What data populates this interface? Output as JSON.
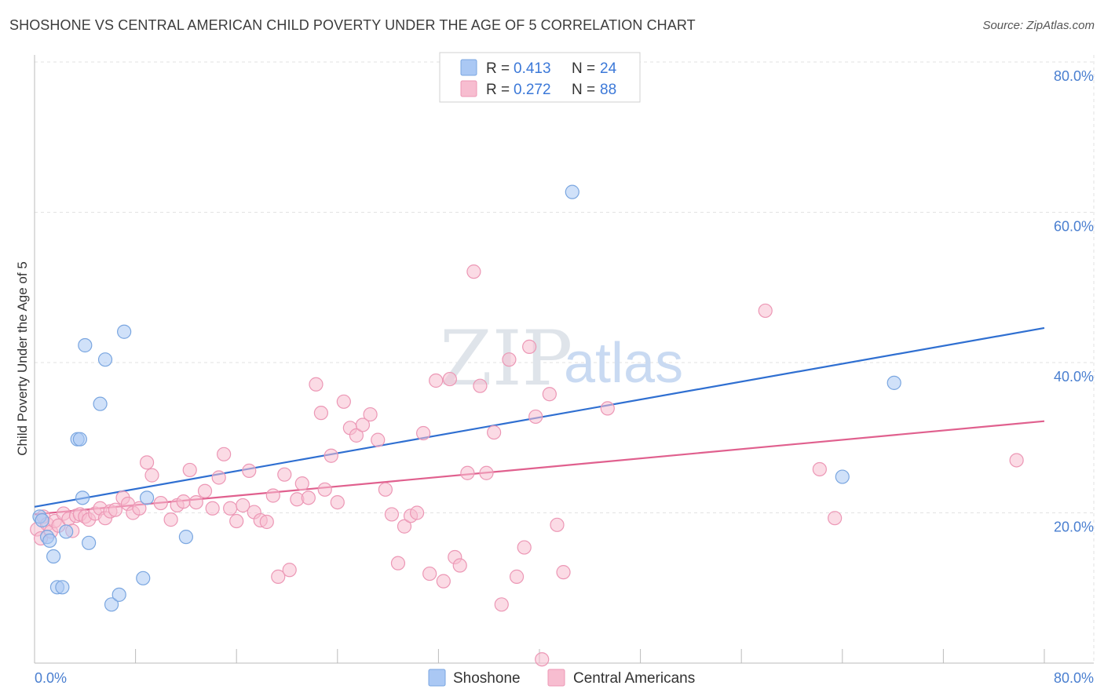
{
  "header": {
    "title": "SHOSHONE VS CENTRAL AMERICAN CHILD POVERTY UNDER THE AGE OF 5 CORRELATION CHART",
    "source": "Source: ZipAtlas.com"
  },
  "watermark": {
    "zip": "ZIP",
    "atlas": "atlas"
  },
  "legend": {
    "items": [
      {
        "r_label": "R =",
        "r_value": "0.413",
        "n_label": "N =",
        "n_value": "24"
      },
      {
        "r_label": "R =",
        "r_value": "0.272",
        "n_label": "N =",
        "n_value": "88"
      }
    ]
  },
  "chart_data": {
    "type": "scatter",
    "title": "SHOSHONE VS CENTRAL AMERICAN CHILD POVERTY UNDER THE AGE OF 5 CORRELATION CHART",
    "xlabel": "",
    "ylabel": "Child Poverty Under the Age of 5",
    "xlim": [
      0,
      80
    ],
    "ylim": [
      0,
      82
    ],
    "x_tick_labels": [
      "0.0%",
      "80.0%"
    ],
    "y_ticks": [
      20,
      40,
      60,
      80
    ],
    "y_tick_labels": [
      "20.0%",
      "40.0%",
      "60.0%",
      "80.0%"
    ],
    "grid": true,
    "legend_position": "top-center",
    "colors": {
      "shoshone_fill": "#aac8f4",
      "shoshone_stroke": "#7aa6e0",
      "shoshone_line": "#2f6fd1",
      "central_fill": "#f7bdd0",
      "central_stroke": "#ec97b5",
      "central_line": "#e0608e",
      "axis_text": "#4a7fd0"
    },
    "series": [
      {
        "name": "Shoshone",
        "trend": {
          "x": [
            0,
            80
          ],
          "y": [
            20.8,
            44.6
          ]
        },
        "points": [
          [
            0.4,
            19.5
          ],
          [
            0.6,
            19.0
          ],
          [
            1.0,
            16.8
          ],
          [
            1.2,
            16.3
          ],
          [
            1.5,
            14.2
          ],
          [
            1.8,
            10.1
          ],
          [
            2.2,
            10.1
          ],
          [
            2.5,
            17.5
          ],
          [
            3.4,
            29.8
          ],
          [
            3.6,
            29.8
          ],
          [
            3.8,
            22.0
          ],
          [
            4.0,
            42.3
          ],
          [
            4.3,
            16.0
          ],
          [
            5.2,
            34.5
          ],
          [
            5.6,
            40.4
          ],
          [
            6.1,
            7.8
          ],
          [
            6.7,
            9.1
          ],
          [
            7.1,
            44.1
          ],
          [
            8.6,
            11.3
          ],
          [
            8.9,
            22.0
          ],
          [
            12.0,
            16.8
          ],
          [
            42.6,
            62.7
          ],
          [
            64.0,
            24.8
          ],
          [
            68.1,
            37.3
          ]
        ]
      },
      {
        "name": "Central Americans",
        "trend": {
          "x": [
            0,
            80
          ],
          "y": [
            19.8,
            32.2
          ]
        },
        "points": [
          [
            0.2,
            17.8
          ],
          [
            0.5,
            16.6
          ],
          [
            0.7,
            19.5
          ],
          [
            1.0,
            18.5
          ],
          [
            1.3,
            17.5
          ],
          [
            1.6,
            18.9
          ],
          [
            1.9,
            18.3
          ],
          [
            2.3,
            19.9
          ],
          [
            2.7,
            19.2
          ],
          [
            3.0,
            17.6
          ],
          [
            3.3,
            19.6
          ],
          [
            3.6,
            19.8
          ],
          [
            4.0,
            19.5
          ],
          [
            4.3,
            19.1
          ],
          [
            4.8,
            19.9
          ],
          [
            5.2,
            20.6
          ],
          [
            5.6,
            19.3
          ],
          [
            6.0,
            20.2
          ],
          [
            6.4,
            20.4
          ],
          [
            7.0,
            22.0
          ],
          [
            7.4,
            21.2
          ],
          [
            7.8,
            20.0
          ],
          [
            8.3,
            20.6
          ],
          [
            8.9,
            26.7
          ],
          [
            9.3,
            25.0
          ],
          [
            10.0,
            21.3
          ],
          [
            10.8,
            19.1
          ],
          [
            11.3,
            21.0
          ],
          [
            11.8,
            21.5
          ],
          [
            12.3,
            25.7
          ],
          [
            12.8,
            21.4
          ],
          [
            13.5,
            22.9
          ],
          [
            14.1,
            20.6
          ],
          [
            14.6,
            24.7
          ],
          [
            15.0,
            27.8
          ],
          [
            15.5,
            20.6
          ],
          [
            16.0,
            18.9
          ],
          [
            16.5,
            21.0
          ],
          [
            17.0,
            25.6
          ],
          [
            17.4,
            20.1
          ],
          [
            17.9,
            19.0
          ],
          [
            18.4,
            18.8
          ],
          [
            18.9,
            22.3
          ],
          [
            19.3,
            11.5
          ],
          [
            19.8,
            25.1
          ],
          [
            20.2,
            12.4
          ],
          [
            20.8,
            21.8
          ],
          [
            21.2,
            23.9
          ],
          [
            21.7,
            22.0
          ],
          [
            22.3,
            37.1
          ],
          [
            22.7,
            33.3
          ],
          [
            23.0,
            23.1
          ],
          [
            23.5,
            27.6
          ],
          [
            24.0,
            21.4
          ],
          [
            24.5,
            34.8
          ],
          [
            25.0,
            31.3
          ],
          [
            25.5,
            30.3
          ],
          [
            26.0,
            31.7
          ],
          [
            26.6,
            33.1
          ],
          [
            27.2,
            29.7
          ],
          [
            27.8,
            23.1
          ],
          [
            28.3,
            19.8
          ],
          [
            28.8,
            13.3
          ],
          [
            29.3,
            18.2
          ],
          [
            29.8,
            19.6
          ],
          [
            30.3,
            20.0
          ],
          [
            30.8,
            30.6
          ],
          [
            31.3,
            11.9
          ],
          [
            31.8,
            37.6
          ],
          [
            32.4,
            10.9
          ],
          [
            32.9,
            37.8
          ],
          [
            33.3,
            14.1
          ],
          [
            33.7,
            13.0
          ],
          [
            34.3,
            25.3
          ],
          [
            34.8,
            52.1
          ],
          [
            35.3,
            36.9
          ],
          [
            35.8,
            25.3
          ],
          [
            36.4,
            30.7
          ],
          [
            37.0,
            7.8
          ],
          [
            37.6,
            40.4
          ],
          [
            38.2,
            11.5
          ],
          [
            38.8,
            15.4
          ],
          [
            39.2,
            42.1
          ],
          [
            39.7,
            32.8
          ],
          [
            40.2,
            0.5
          ],
          [
            40.8,
            35.8
          ],
          [
            41.4,
            18.4
          ],
          [
            41.9,
            12.1
          ]
        ]
      }
    ],
    "extra_points": {
      "Central Americans": [
        [
          45.4,
          33.9
        ],
        [
          57.9,
          46.9
        ],
        [
          62.2,
          25.8
        ],
        [
          63.4,
          19.3
        ],
        [
          77.8,
          27.0
        ]
      ]
    }
  },
  "bottom_legend": {
    "items": [
      {
        "label": "Shoshone"
      },
      {
        "label": "Central Americans"
      }
    ]
  }
}
